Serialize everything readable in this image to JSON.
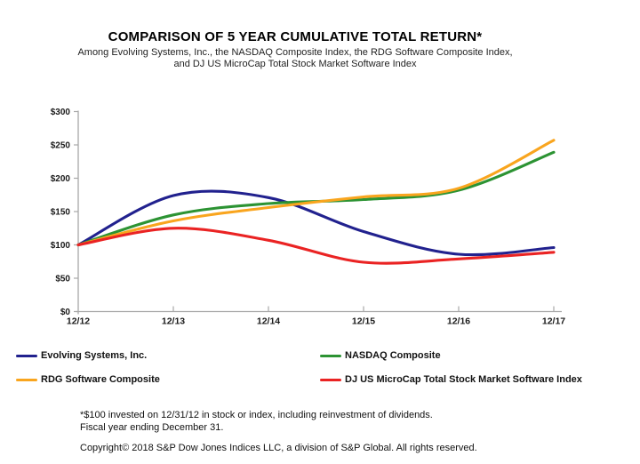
{
  "header": {
    "title": "COMPARISON OF 5 YEAR CUMULATIVE TOTAL RETURN*",
    "subtitle_line1": "Among Evolving Systems, Inc., the NASDAQ Composite Index, the RDG Software Composite Index,",
    "subtitle_line2": "and DJ US MicroCap Total Stock Market Software Index"
  },
  "chart_data": {
    "type": "line",
    "categories": [
      "12/12",
      "12/13",
      "12/14",
      "12/15",
      "12/16",
      "12/17"
    ],
    "series": [
      {
        "name": "Evolving Systems, Inc.",
        "color": "#21218E",
        "values": [
          100,
          174,
          171,
          120,
          86,
          96
        ]
      },
      {
        "name": "NASDAQ Composite",
        "color": "#2C9333",
        "values": [
          100,
          145,
          162,
          168,
          182,
          239
        ]
      },
      {
        "name": "RDG Software Composite",
        "color": "#F9A51E",
        "values": [
          100,
          136,
          156,
          172,
          185,
          257
        ]
      },
      {
        "name": "DJ US MicroCap Total Stock Market Software Index",
        "color": "#EA2323",
        "values": [
          100,
          125,
          107,
          74,
          79,
          89
        ]
      }
    ],
    "title": "COMPARISON OF 5 YEAR CUMULATIVE TOTAL RETURN*",
    "xlabel": "",
    "ylabel": "",
    "ylim": [
      0,
      300
    ],
    "ytick_step": 50,
    "ytick_labels": [
      "$0",
      "$50",
      "$100",
      "$150",
      "$200",
      "$250",
      "$300"
    ],
    "grid": false,
    "smoothed_lines": true,
    "legend_position": "bottom",
    "axis_color": "#A8A8A8"
  },
  "footnotes": {
    "line1": "*$100 invested on 12/31/12 in stock or index, including reinvestment of dividends.",
    "line2": "Fiscal year ending December 31.",
    "copyright": "Copyright© 2018 S&P Dow Jones Indices LLC, a division of S&P Global.  All rights reserved."
  }
}
